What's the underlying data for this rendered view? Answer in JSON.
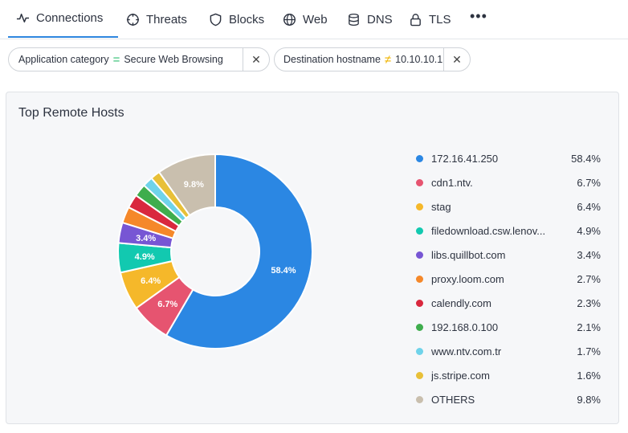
{
  "tabs": [
    {
      "label": "Connections",
      "icon": "activity-icon",
      "active": true
    },
    {
      "label": "Threats",
      "icon": "crosshair-icon",
      "active": false
    },
    {
      "label": "Blocks",
      "icon": "shield-icon",
      "active": false
    },
    {
      "label": "Web",
      "icon": "globe-icon",
      "active": false
    },
    {
      "label": "DNS",
      "icon": "database-icon",
      "active": false
    },
    {
      "label": "TLS",
      "icon": "lock-icon",
      "active": false
    }
  ],
  "more_label": "•••",
  "filters": [
    {
      "field": "Application category",
      "operator": "=",
      "value": "Secure Web Browsing"
    },
    {
      "field": "Destination hostname",
      "operator": "≠",
      "value": "10.10.10.1"
    }
  ],
  "panel": {
    "title": "Top Remote Hosts"
  },
  "chart_data": {
    "type": "pie",
    "title": "Top Remote Hosts",
    "categories": [
      "172.16.41.250",
      "cdn1.ntv.",
      "stag",
      "filedownload.csw.lenov...",
      "libs.quillbot.com",
      "proxy.loom.com",
      "calendly.com",
      "192.168.0.100",
      "www.ntv.com.tr",
      "js.stripe.com",
      "OTHERS"
    ],
    "values": [
      58.4,
      6.7,
      6.4,
      4.9,
      3.4,
      2.7,
      2.3,
      2.1,
      1.7,
      1.6,
      9.8
    ],
    "value_labels": [
      "58.4%",
      "6.7%",
      "6.4%",
      "4.9%",
      "3.4%",
      "2.7%",
      "2.3%",
      "2.1%",
      "1.7%",
      "1.6%",
      "9.8%"
    ],
    "colors": [
      "#2b87e3",
      "#e65470",
      "#f5b82a",
      "#12c9b0",
      "#7756d4",
      "#f5882a",
      "#d9283e",
      "#3fad4d",
      "#6fd3ea",
      "#e8c038",
      "#c9bfae"
    ],
    "legend_position": "right"
  }
}
